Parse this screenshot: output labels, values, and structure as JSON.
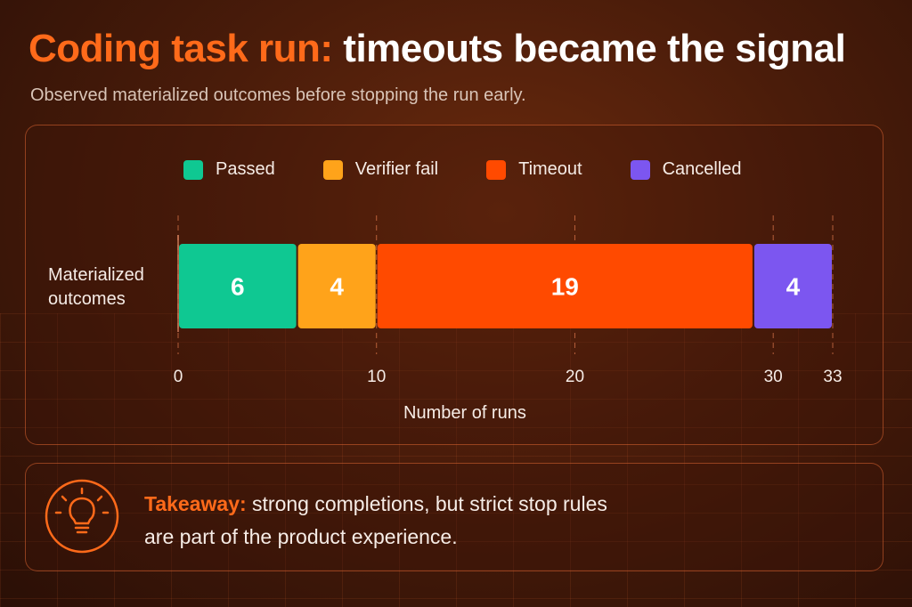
{
  "title": {
    "accent": "Coding task run:",
    "rest": "timeouts became the signal"
  },
  "subtitle": "Observed materialized outcomes before stopping the run early.",
  "chart_data": {
    "type": "bar",
    "orientation": "horizontal",
    "stacked": true,
    "categories": [
      "Materialized outcomes"
    ],
    "series": [
      {
        "name": "Passed",
        "values": [
          6
        ],
        "color": "#0fc892"
      },
      {
        "name": "Verifier fail",
        "values": [
          4
        ],
        "color": "#ffa31a"
      },
      {
        "name": "Timeout",
        "values": [
          19
        ],
        "color": "#ff4a00"
      },
      {
        "name": "Cancelled",
        "values": [
          4
        ],
        "color": "#7c56f0"
      }
    ],
    "xlabel": "Number of runs",
    "ylabel": "",
    "xticks": [
      0,
      10,
      20,
      30,
      33
    ],
    "xlim": [
      0,
      33
    ],
    "legend_position": "top",
    "grid": "dashed vertical at ticks"
  },
  "takeaway": {
    "icon": "lightbulb-icon",
    "keyword": "Takeaway:",
    "text_line1": "strong completions, but strict stop rules",
    "text_line2": "are part of the product experience."
  },
  "colors": {
    "accent": "#ff6a1a",
    "panel_border": "#c4501e"
  }
}
